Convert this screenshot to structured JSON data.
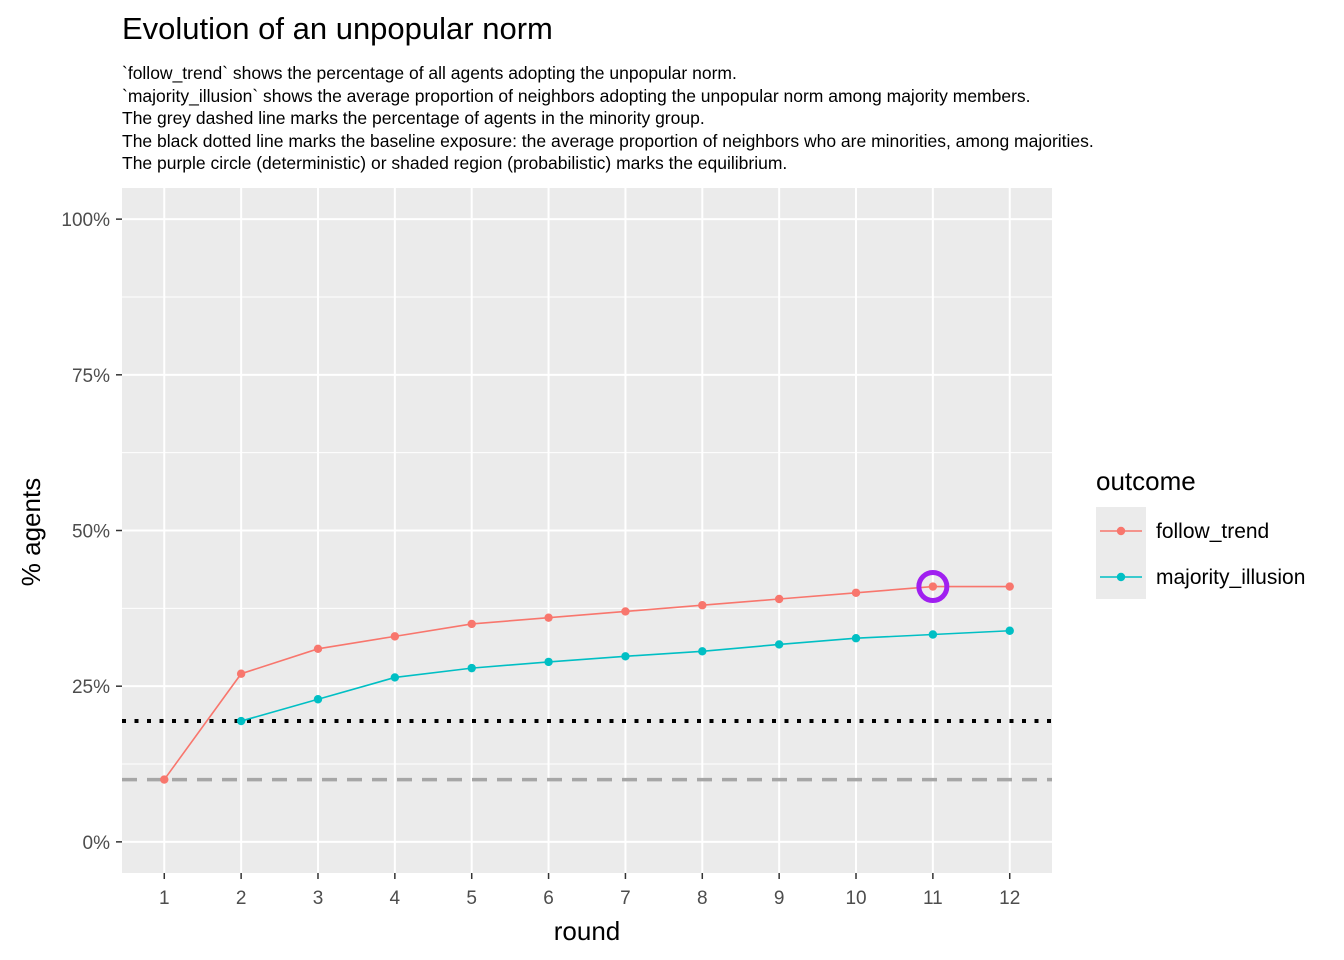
{
  "chart_data": {
    "type": "line",
    "title": "Evolution of an unpopular norm",
    "subtitle": [
      "`follow_trend` shows the percentage of all agents adopting the unpopular norm.",
      "`majority_illusion` shows the average proportion of neighbors adopting the unpopular norm among majority members.",
      "The grey dashed line marks the percentage of agents in the minority group.",
      "The black dotted line marks the baseline exposure: the average proportion of neighbors who are minorities, among majorities.",
      "The purple circle (deterministic) or shaded region (probabilistic) marks the equilibrium."
    ],
    "xlabel": "round",
    "ylabel": "% agents",
    "x_ticks": [
      "1",
      "2",
      "3",
      "4",
      "5",
      "6",
      "7",
      "8",
      "9",
      "10",
      "11",
      "12"
    ],
    "y_ticks": [
      {
        "value": 0,
        "label": "0%"
      },
      {
        "value": 0.25,
        "label": "25%"
      },
      {
        "value": 0.5,
        "label": "50%"
      },
      {
        "value": 0.75,
        "label": "75%"
      },
      {
        "value": 1.0,
        "label": "100%"
      }
    ],
    "xlim": [
      0.45,
      12.55
    ],
    "ylim": [
      -0.05,
      1.05
    ],
    "grid": true,
    "legend_title": "outcome",
    "legend_position": "right",
    "series": [
      {
        "name": "follow_trend",
        "color": "#F8766D",
        "x": [
          1,
          2,
          3,
          4,
          5,
          6,
          7,
          8,
          9,
          10,
          11,
          12
        ],
        "values": [
          0.1,
          0.27,
          0.31,
          0.33,
          0.35,
          0.36,
          0.37,
          0.38,
          0.39,
          0.4,
          0.41,
          0.41
        ]
      },
      {
        "name": "majority_illusion",
        "color": "#00BFC4",
        "x": [
          2,
          3,
          4,
          5,
          6,
          7,
          8,
          9,
          10,
          11,
          12
        ],
        "values": [
          0.194,
          0.229,
          0.264,
          0.279,
          0.289,
          0.298,
          0.306,
          0.317,
          0.327,
          0.333,
          0.339
        ]
      }
    ],
    "reference_lines": [
      {
        "kind": "minority_share",
        "value": 0.1,
        "style": "dashed",
        "color": "#A6A6A6"
      },
      {
        "kind": "baseline_exposure",
        "value": 0.194,
        "style": "dotted",
        "color": "#000000"
      }
    ],
    "equilibrium_marker": {
      "x": 11,
      "y": 0.41,
      "color": "#A020F0"
    },
    "colors": {
      "panel": "#EBEBEB",
      "grid": "#FFFFFF",
      "tick_text": "#4D4D4D"
    }
  }
}
